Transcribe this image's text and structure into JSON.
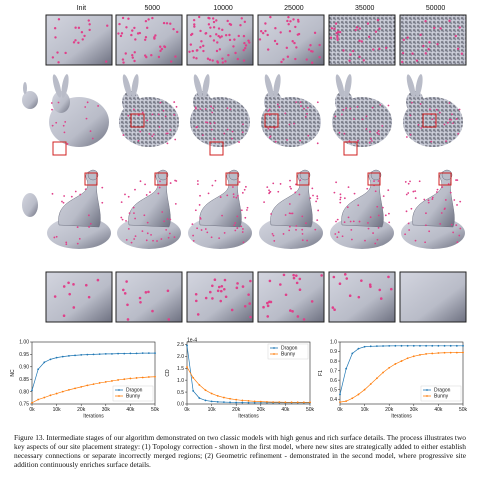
{
  "figure": {
    "column_labels": [
      "Init",
      "5000",
      "10000",
      "25000",
      "35000",
      "50000"
    ],
    "caption": "Figure 13. Intermediate stages of our algorithm demonstrated on two classic models with high genus and rich surface details. The process illustrates two key aspects of our site placement strategy: (1) Topology correction - shown in the first model, where new sites are strategically added to either establish necessary connections or separate incorrectly merged regions; (2) Geometric refinement - demonstrated in the second model, where progressive site addition continuously enriches surface details.",
    "colors": {
      "mesh": "#b9bcc8",
      "mesh_dark": "#6d7080",
      "sites": "#e0408a",
      "highlight_box": "#d22020"
    }
  },
  "chart_data": [
    {
      "type": "line",
      "xlabel": "Iterations",
      "ylabel": "NC",
      "xlim": [
        0,
        50000
      ],
      "ylim": [
        0.75,
        1.0
      ],
      "xticks": [
        "0k",
        "10k",
        "20k",
        "30k",
        "40k",
        "50k"
      ],
      "yticks": [
        "0.75",
        "0.80",
        "0.85",
        "0.90",
        "0.95",
        "1.00"
      ],
      "legend": "bottom-right",
      "series": [
        {
          "name": "Dragon",
          "color": "#1f77b4",
          "x": [
            0,
            2500,
            5000,
            7500,
            10000,
            12500,
            15000,
            17500,
            20000,
            22500,
            25000,
            27500,
            30000,
            32500,
            35000,
            37500,
            40000,
            42500,
            45000,
            47500,
            50000
          ],
          "y": [
            0.805,
            0.89,
            0.918,
            0.93,
            0.937,
            0.941,
            0.944,
            0.946,
            0.948,
            0.949,
            0.95,
            0.951,
            0.952,
            0.952,
            0.953,
            0.953,
            0.954,
            0.954,
            0.955,
            0.955,
            0.955
          ]
        },
        {
          "name": "Bunny",
          "color": "#ff7f0e",
          "x": [
            0,
            2500,
            5000,
            7500,
            10000,
            12500,
            15000,
            17500,
            20000,
            22500,
            25000,
            27500,
            30000,
            32500,
            35000,
            37500,
            40000,
            42500,
            45000,
            47500,
            50000
          ],
          "y": [
            0.755,
            0.768,
            0.776,
            0.785,
            0.792,
            0.8,
            0.807,
            0.813,
            0.819,
            0.825,
            0.83,
            0.835,
            0.839,
            0.843,
            0.847,
            0.85,
            0.853,
            0.855,
            0.857,
            0.859,
            0.86
          ]
        }
      ]
    },
    {
      "type": "line",
      "xlabel": "Iterations",
      "ylabel": "CD",
      "scale_note": "1e-4",
      "xlim": [
        0,
        50000
      ],
      "ylim": [
        0,
        2.6
      ],
      "xticks": [
        "0k",
        "10k",
        "20k",
        "30k",
        "40k",
        "50k"
      ],
      "yticks": [
        "0.0",
        "0.5",
        "1.0",
        "1.5",
        "2.0",
        "2.5"
      ],
      "legend": "top-right",
      "series": [
        {
          "name": "Dragon",
          "color": "#1f77b4",
          "x": [
            0,
            2500,
            5000,
            7500,
            10000,
            12500,
            15000,
            17500,
            20000,
            22500,
            25000,
            27500,
            30000,
            32500,
            35000,
            37500,
            40000,
            42500,
            45000,
            47500,
            50000
          ],
          "y": [
            2.45,
            0.55,
            0.25,
            0.15,
            0.11,
            0.09,
            0.08,
            0.07,
            0.06,
            0.06,
            0.05,
            0.05,
            0.05,
            0.05,
            0.05,
            0.05,
            0.05,
            0.05,
            0.05,
            0.05,
            0.05
          ]
        },
        {
          "name": "Bunny",
          "color": "#ff7f0e",
          "x": [
            0,
            2500,
            5000,
            7500,
            10000,
            12500,
            15000,
            17500,
            20000,
            22500,
            25000,
            27500,
            30000,
            32500,
            35000,
            37500,
            40000,
            42500,
            45000,
            47500,
            50000
          ],
          "y": [
            1.55,
            1.1,
            0.8,
            0.58,
            0.44,
            0.34,
            0.27,
            0.22,
            0.18,
            0.15,
            0.13,
            0.11,
            0.1,
            0.09,
            0.08,
            0.08,
            0.07,
            0.07,
            0.07,
            0.07,
            0.07
          ]
        }
      ]
    },
    {
      "type": "line",
      "xlabel": "Iterations",
      "ylabel": "F1",
      "xlim": [
        0,
        50000
      ],
      "ylim": [
        0.35,
        1.0
      ],
      "xticks": [
        "0k",
        "10k",
        "20k",
        "30k",
        "40k",
        "50k"
      ],
      "yticks": [
        "0.4",
        "0.5",
        "0.6",
        "0.7",
        "0.8",
        "0.9",
        "1.0"
      ],
      "legend": "bottom-right",
      "series": [
        {
          "name": "Dragon",
          "color": "#1f77b4",
          "x": [
            0,
            2500,
            5000,
            7500,
            10000,
            12500,
            15000,
            17500,
            20000,
            22500,
            25000,
            27500,
            30000,
            32500,
            35000,
            37500,
            40000,
            42500,
            45000,
            47500,
            50000
          ],
          "y": [
            0.45,
            0.72,
            0.88,
            0.93,
            0.95,
            0.955,
            0.957,
            0.958,
            0.959,
            0.96,
            0.96,
            0.96,
            0.96,
            0.96,
            0.96,
            0.96,
            0.96,
            0.96,
            0.96,
            0.96,
            0.96
          ]
        },
        {
          "name": "Bunny",
          "color": "#ff7f0e",
          "x": [
            0,
            2500,
            5000,
            7500,
            10000,
            12500,
            15000,
            17500,
            20000,
            22500,
            25000,
            27500,
            30000,
            32500,
            35000,
            37500,
            40000,
            42500,
            45000,
            47500,
            50000
          ],
          "y": [
            0.37,
            0.38,
            0.41,
            0.45,
            0.5,
            0.56,
            0.62,
            0.68,
            0.73,
            0.77,
            0.8,
            0.83,
            0.85,
            0.865,
            0.875,
            0.88,
            0.885,
            0.887,
            0.888,
            0.889,
            0.89
          ]
        }
      ]
    }
  ]
}
